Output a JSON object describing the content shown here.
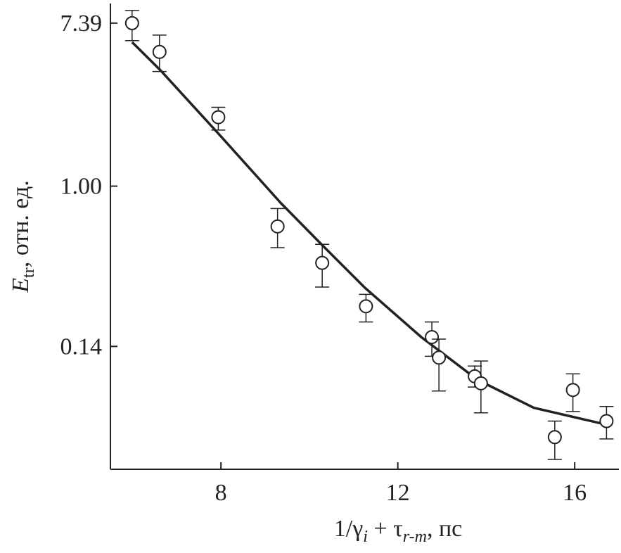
{
  "chart_data": {
    "type": "scatter",
    "y_label": [
      "E",
      "tr",
      ", отн. ед."
    ],
    "x_label": [
      "1/γ",
      "i",
      " + τ",
      "r-m",
      ", пс"
    ],
    "x": [
      5.99,
      6.61,
      7.94,
      9.28,
      10.29,
      11.28,
      12.77,
      12.93,
      13.74,
      13.88,
      15.55,
      15.96,
      16.72
    ],
    "values": [
      7.39,
      5.19,
      2.33,
      0.61,
      0.39,
      0.229,
      0.157,
      0.122,
      0.097,
      0.089,
      0.046,
      0.082,
      0.056
    ],
    "lower": [
      5.96,
      4.08,
      1.99,
      0.47,
      0.29,
      0.189,
      0.124,
      0.081,
      0.085,
      0.062,
      0.035,
      0.063,
      0.045
    ],
    "upper": [
      8.63,
      6.38,
      2.63,
      0.76,
      0.49,
      0.265,
      0.189,
      0.153,
      0.11,
      0.117,
      0.056,
      0.1,
      0.067
    ],
    "fit": {
      "x": [
        5.99,
        6.63,
        8.01,
        9.36,
        10.31,
        11.26,
        12.53,
        13.8,
        15.07,
        16.66
      ],
      "y": [
        5.85,
        4.15,
        1.83,
        0.81,
        0.48,
        0.287,
        0.157,
        0.093,
        0.066,
        0.054
      ]
    },
    "color": "#222222",
    "xlim": [
      5.5,
      17
    ],
    "xticks": [
      8,
      12,
      16
    ],
    "ylim": [
      0.031,
      9.4
    ],
    "log_y": true,
    "yticks": [
      7.39,
      {
        "value": 1,
        "label": "1.00"
      },
      0.14
    ]
  }
}
